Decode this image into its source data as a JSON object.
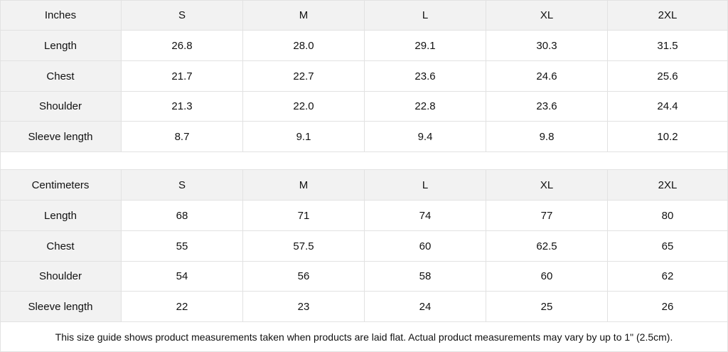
{
  "tables": [
    {
      "header": [
        "Inches",
        "S",
        "M",
        "L",
        "XL",
        "2XL"
      ],
      "rows": [
        [
          "Length",
          "26.8",
          "28.0",
          "29.1",
          "30.3",
          "31.5"
        ],
        [
          "Chest",
          "21.7",
          "22.7",
          "23.6",
          "24.6",
          "25.6"
        ],
        [
          "Shoulder",
          "21.3",
          "22.0",
          "22.8",
          "23.6",
          "24.4"
        ],
        [
          "Sleeve length",
          "8.7",
          "9.1",
          "9.4",
          "9.8",
          "10.2"
        ]
      ]
    },
    {
      "header": [
        "Centimeters",
        "S",
        "M",
        "L",
        "XL",
        "2XL"
      ],
      "rows": [
        [
          "Length",
          "68",
          "71",
          "74",
          "77",
          "80"
        ],
        [
          "Chest",
          "55",
          "57.5",
          "60",
          "62.5",
          "65"
        ],
        [
          "Shoulder",
          "54",
          "56",
          "58",
          "60",
          "62"
        ],
        [
          "Sleeve length",
          "22",
          "23",
          "24",
          "25",
          "26"
        ]
      ]
    }
  ],
  "note": "This size guide shows product measurements taken when products are laid flat.  Actual product measurements may vary by up to 1\" (2.5cm).",
  "colors": {
    "header_bg": "#f2f2f2",
    "border": "#e2e2e2"
  }
}
